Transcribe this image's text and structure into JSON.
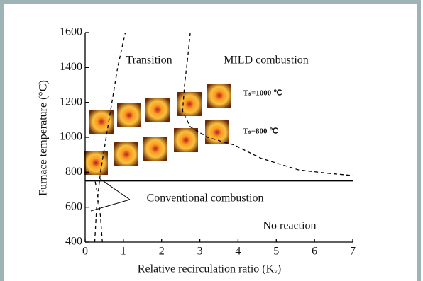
{
  "chart_data": {
    "type": "line",
    "xlabel": "Relative recirculation ratio (Kᵥ)",
    "ylabel": "Furnace temperature (°C)",
    "xlim": [
      0,
      7
    ],
    "xticks": [
      0,
      1,
      2,
      3,
      4,
      5,
      6,
      7
    ],
    "ylim": [
      400,
      1600
    ],
    "yticks": [
      400,
      600,
      800,
      1000,
      1200,
      1400,
      1600
    ],
    "annotations": [
      "Transition",
      "MILD combustion",
      "Conventional combustion",
      "No reaction",
      "Tₛ=1000 ℃",
      "Tₛ=800 ℃"
    ],
    "series": [
      {
        "color": "#000000",
        "dashed": true,
        "x": [
          0.25,
          0.3,
          0.4,
          0.55,
          0.7,
          0.85,
          1.05
        ],
        "values": [
          400,
          600,
          800,
          1000,
          1200,
          1400,
          1600
        ]
      },
      {
        "color": "#000000",
        "dashed": true,
        "x": [
          0.45,
          0.4,
          0.32,
          0.25
        ],
        "values": [
          400,
          550,
          680,
          760
        ]
      },
      {
        "color": "#000000",
        "dashed": true,
        "x": [
          2.75,
          2.68,
          2.6,
          2.55,
          2.75,
          3.2,
          3.9,
          4.6,
          5.57,
          6.3,
          7
        ],
        "values": [
          1600,
          1450,
          1300,
          1150,
          1060,
          1000,
          956,
          880,
          814,
          795,
          781
        ]
      },
      {
        "color": "#000000",
        "dashed": false,
        "x": [
          0,
          7
        ],
        "values": [
          750,
          750
        ]
      }
    ]
  }
}
